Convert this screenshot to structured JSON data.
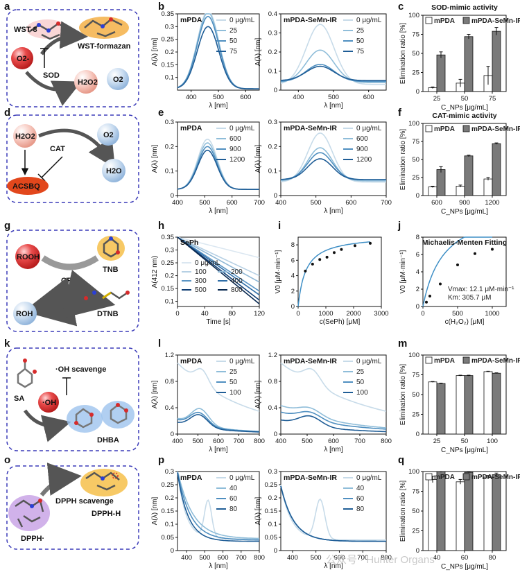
{
  "panel_labels": [
    "a",
    "b",
    "c",
    "d",
    "e",
    "f",
    "g",
    "h",
    "i",
    "j",
    "k",
    "l",
    "m",
    "o",
    "p",
    "q"
  ],
  "cartoons": {
    "a": {
      "labels": [
        "WST-8",
        "WST-formazan",
        "O2-",
        "SOD",
        "H2O2",
        "O2"
      ]
    },
    "d": {
      "labels": [
        "H2O2",
        "CAT",
        "O2",
        "H2O",
        "ACSBQ"
      ]
    },
    "g": {
      "labels": [
        "ROOH",
        "TNB",
        "GPx",
        "ROH",
        "DTNB"
      ]
    },
    "k": {
      "labels": [
        "·OH scavenge",
        "SA",
        "·OH",
        "DHBA"
      ]
    },
    "o": {
      "labels": [
        "DPPH scavenge",
        "DPPH-H",
        "DPPH·"
      ]
    }
  },
  "watermark": "公众号 · Hunter Organs",
  "colors": {
    "series": [
      "#c7dbe9",
      "#8fbdd9",
      "#4f8fc0",
      "#1f5d96"
    ],
    "series6": [
      "#dbe7f1",
      "#b6d0e4",
      "#8fb7d5",
      "#5b95c4",
      "#2f6ea8",
      "#0f3d73"
    ],
    "bar_light": "#ffffff",
    "bar_dark": "#7a7a7a",
    "fit": "#3f8fc6"
  },
  "chart_data": [
    {
      "id": "b1",
      "panel": "b",
      "type": "line",
      "title": "mPDA",
      "xlabel": "λ [nm]",
      "ylabel": "A(λ) [nm]",
      "xlim": [
        350,
        650
      ],
      "ylim": [
        0.05,
        0.35
      ],
      "xticks": [
        400,
        500,
        600
      ],
      "yticks": [
        0.1,
        0.15,
        0.2,
        0.25,
        0.3,
        0.35
      ],
      "legend_position": "top-right",
      "series": [
        {
          "name": "0 μg/mL",
          "peak": 0.308,
          "center": 462,
          "width": 56,
          "baseline": 0.055
        },
        {
          "name": "25",
          "peak": 0.3,
          "center": 462,
          "width": 56,
          "baseline": 0.055
        },
        {
          "name": "50",
          "peak": 0.285,
          "center": 462,
          "width": 56,
          "baseline": 0.055
        },
        {
          "name": "75",
          "peak": 0.245,
          "center": 462,
          "width": 56,
          "baseline": 0.055
        }
      ]
    },
    {
      "id": "b2",
      "panel": "b",
      "type": "line",
      "title": "mPDA-SeMn-IR",
      "xlabel": "λ [nm]",
      "ylabel": "A(λ) [nm]",
      "xlim": [
        350,
        650
      ],
      "ylim": [
        0.0,
        0.4
      ],
      "xticks": [
        400,
        500,
        600
      ],
      "yticks": [
        0.0,
        0.1,
        0.2,
        0.3,
        0.4
      ],
      "legend_position": "top-right",
      "series": [
        {
          "name": "0 μg/mL",
          "peak": 0.315,
          "center": 462,
          "width": 56,
          "baseline": 0.03
        },
        {
          "name": "25",
          "peak": 0.17,
          "center": 462,
          "width": 56,
          "baseline": 0.04
        },
        {
          "name": "50",
          "peak": 0.09,
          "center": 462,
          "width": 56,
          "baseline": 0.045
        },
        {
          "name": "75",
          "peak": 0.075,
          "center": 462,
          "width": 56,
          "baseline": 0.05
        }
      ]
    },
    {
      "id": "c",
      "panel": "c",
      "type": "bar",
      "title": "SOD-mimic activity",
      "xlabel": "C_NPs [μg/mL]",
      "ylabel": "Elimination ratio [%]",
      "categories": [
        "25",
        "50",
        "75"
      ],
      "ylim": [
        0,
        100
      ],
      "yticks": [
        0,
        25,
        50,
        75,
        100
      ],
      "legend_position": "top",
      "series": [
        {
          "name": "mPDA",
          "values": [
            5,
            11,
            21
          ],
          "errors": [
            1,
            5,
            12
          ]
        },
        {
          "name": "mPDA-SeMn-IR",
          "values": [
            48,
            72,
            79
          ],
          "errors": [
            4,
            3,
            5
          ]
        }
      ]
    },
    {
      "id": "e1",
      "panel": "e",
      "type": "line",
      "title": "mPDA",
      "xlabel": "λ [nm]",
      "ylabel": "A(λ) [nm]",
      "xlim": [
        400,
        700
      ],
      "ylim": [
        0.0,
        0.3
      ],
      "xticks": [
        400,
        500,
        600,
        700
      ],
      "yticks": [
        0.0,
        0.1,
        0.2,
        0.3
      ],
      "legend_position": "top-right",
      "series": [
        {
          "name": "0 μg/mL",
          "peak": 0.205,
          "center": 510,
          "width": 50,
          "baseline": 0.025
        },
        {
          "name": "600",
          "peak": 0.19,
          "center": 510,
          "width": 50,
          "baseline": 0.025
        },
        {
          "name": "900",
          "peak": 0.175,
          "center": 510,
          "width": 50,
          "baseline": 0.025
        },
        {
          "name": "1200",
          "peak": 0.16,
          "center": 510,
          "width": 50,
          "baseline": 0.025
        }
      ]
    },
    {
      "id": "e2",
      "panel": "e",
      "type": "line",
      "title": "mPDA-SeMn-IR",
      "xlabel": "λ [nm]",
      "ylabel": "A(λ) [nm]",
      "xlim": [
        400,
        700
      ],
      "ylim": [
        0.0,
        0.3
      ],
      "xticks": [
        400,
        500,
        600,
        700
      ],
      "yticks": [
        0.0,
        0.1,
        0.2,
        0.3
      ],
      "legend_position": "top-right",
      "series": [
        {
          "name": "0 μg/mL",
          "peak": 0.2,
          "center": 512,
          "width": 50,
          "baseline": 0.055
        },
        {
          "name": "600",
          "peak": 0.135,
          "center": 512,
          "width": 50,
          "baseline": 0.06
        },
        {
          "name": "900",
          "peak": 0.11,
          "center": 512,
          "width": 50,
          "baseline": 0.065
        },
        {
          "name": "1200",
          "peak": 0.085,
          "center": 512,
          "width": 50,
          "baseline": 0.065
        }
      ]
    },
    {
      "id": "f",
      "panel": "f",
      "type": "bar",
      "title": "CAT-mimic activity",
      "xlabel": "C_NPs [μg/mL]",
      "ylabel": "Elimination ratio [%]",
      "categories": [
        "600",
        "900",
        "1200"
      ],
      "ylim": [
        0,
        100
      ],
      "yticks": [
        0,
        25,
        50,
        75,
        100
      ],
      "legend_position": "top",
      "series": [
        {
          "name": "mPDA",
          "values": [
            12,
            13,
            23
          ],
          "errors": [
            1,
            1.5,
            2
          ]
        },
        {
          "name": "mPDA-SeMn-IR",
          "values": [
            36,
            55,
            72
          ],
          "errors": [
            4,
            1,
            1
          ]
        }
      ]
    },
    {
      "id": "h",
      "panel": "h",
      "type": "line",
      "title": "SePh",
      "xlabel": "Time [s]",
      "ylabel": "A(412 nm)",
      "xlim": [
        0,
        120
      ],
      "ylim": [
        0.08,
        0.35
      ],
      "xticks": [
        0,
        40,
        80,
        120
      ],
      "yticks": [
        0.1,
        0.15,
        0.2,
        0.25,
        0.3,
        0.35
      ],
      "legend_position": "bottom-left",
      "series": [
        {
          "name": "0 μg/mL",
          "x": [
            0,
            120
          ],
          "y": [
            0.35,
            0.27
          ]
        },
        {
          "name": "100",
          "x": [
            0,
            120
          ],
          "y": [
            0.35,
            0.2
          ]
        },
        {
          "name": "200",
          "x": [
            0,
            120
          ],
          "y": [
            0.35,
            0.175
          ]
        },
        {
          "name": "300",
          "x": [
            0,
            120
          ],
          "y": [
            0.35,
            0.14
          ]
        },
        {
          "name": "400",
          "x": [
            0,
            120
          ],
          "y": [
            0.35,
            0.125
          ]
        },
        {
          "name": "500",
          "x": [
            0,
            120
          ],
          "y": [
            0.35,
            0.105
          ]
        },
        {
          "name": "800",
          "x": [
            0,
            120
          ],
          "y": [
            0.35,
            0.09
          ]
        }
      ]
    },
    {
      "id": "i",
      "panel": "i",
      "type": "scatter",
      "title": "",
      "xlabel": "c(SePh) [μM]",
      "ylabel": "V0 [μM·min⁻¹]",
      "xlim": [
        0,
        3000
      ],
      "ylim": [
        0,
        9
      ],
      "xticks": [
        0,
        1000,
        2000,
        3000
      ],
      "yticks": [
        0,
        2,
        4,
        6,
        8
      ],
      "points": {
        "x": [
          260,
          520,
          780,
          1040,
          1300,
          1560,
          2050,
          2600
        ],
        "y": [
          4.6,
          5.5,
          6.1,
          6.4,
          7.0,
          7.4,
          7.9,
          8.2
        ]
      },
      "fit": {
        "vmax": 9.3,
        "km": 280
      }
    },
    {
      "id": "j",
      "panel": "j",
      "type": "scatter",
      "title": "Michaelis-Menten Fitting",
      "xlabel": "c(H₂O₂) [μM]",
      "ylabel": "V0 [μM·min⁻¹]",
      "xlim": [
        0,
        1200
      ],
      "ylim": [
        0,
        8
      ],
      "xticks": [
        0,
        500,
        1000
      ],
      "yticks": [
        0,
        2,
        4,
        6,
        8
      ],
      "points": {
        "x": [
          50,
          100,
          250,
          500,
          750,
          1000
        ],
        "y": [
          0.5,
          1.2,
          2.6,
          4.8,
          6.1,
          6.6
        ]
      },
      "fit": {
        "vmax": 12.1,
        "km": 305.7
      },
      "annotations": [
        "Vmax: 12.1 μM·min⁻¹",
        "Km: 305.7 μM"
      ]
    },
    {
      "id": "l1",
      "panel": "l",
      "type": "line",
      "title": "mPDA",
      "xlabel": "λ [nm]",
      "ylabel": "A(λ) [nm]",
      "xlim": [
        400,
        800
      ],
      "ylim": [
        0.0,
        1.2
      ],
      "xticks": [
        400,
        500,
        600,
        700,
        800
      ],
      "yticks": [
        0.0,
        0.4,
        0.8,
        1.2
      ],
      "legend_position": "top-right",
      "series": [
        {
          "name": "0 μg/mL",
          "base": 1.05,
          "decay": 0.003,
          "peak": 0.22,
          "center": 520,
          "width": 45,
          "floor": 0.03
        },
        {
          "name": "25",
          "base": 0.22,
          "decay": 0.005,
          "peak": 0.25,
          "center": 510,
          "width": 60,
          "floor": 0.01
        },
        {
          "name": "50",
          "base": 0.2,
          "decay": 0.005,
          "peak": 0.2,
          "center": 505,
          "width": 60,
          "floor": 0.01
        },
        {
          "name": "100",
          "base": 0.16,
          "decay": 0.005,
          "peak": 0.19,
          "center": 505,
          "width": 60,
          "floor": 0.01
        }
      ]
    },
    {
      "id": "l2",
      "panel": "l",
      "type": "line",
      "title": "mPDA-SeMn-IR",
      "xlabel": "λ [nm]",
      "ylabel": "A(λ) [nm]",
      "xlim": [
        400,
        800
      ],
      "ylim": [
        0.0,
        1.2
      ],
      "xticks": [
        400,
        500,
        600,
        700,
        800
      ],
      "yticks": [
        0.0,
        0.4,
        0.8,
        1.2
      ],
      "legend_position": "top-right",
      "series": [
        {
          "name": "0 μg/mL",
          "base": 1.05,
          "decay": 0.003,
          "peak": 0.22,
          "center": 520,
          "width": 45,
          "floor": 0.03
        },
        {
          "name": "25",
          "base": 0.42,
          "decay": 0.004,
          "peak": 0.12,
          "center": 510,
          "width": 60,
          "floor": 0.01
        },
        {
          "name": "50",
          "base": 0.32,
          "decay": 0.004,
          "peak": 0.12,
          "center": 510,
          "width": 60,
          "floor": 0.01
        },
        {
          "name": "100",
          "base": 0.2,
          "decay": 0.005,
          "peak": 0.15,
          "center": 510,
          "width": 60,
          "floor": 0.01
        }
      ]
    },
    {
      "id": "m",
      "panel": "m",
      "type": "bar",
      "title": "",
      "xlabel": "C_NPs [μg/mL]",
      "ylabel": "Elimination ratio [%]",
      "categories": [
        "25",
        "50",
        "100"
      ],
      "ylim": [
        0,
        100
      ],
      "yticks": [
        0,
        25,
        50,
        75,
        100
      ],
      "legend_position": "top",
      "series": [
        {
          "name": "mPDA",
          "values": [
            66,
            74,
            79
          ],
          "errors": [
            0.5,
            0.5,
            0.5
          ]
        },
        {
          "name": "mPDA-SeMn-IR",
          "values": [
            64,
            74,
            77
          ],
          "errors": [
            0.5,
            0.5,
            0.5
          ]
        }
      ]
    },
    {
      "id": "p1",
      "panel": "p",
      "type": "line",
      "title": "mPDA",
      "xlabel": "λ [nm]",
      "ylabel": "A(λ) [nm]",
      "xlim": [
        350,
        800
      ],
      "ylim": [
        0.0,
        0.3
      ],
      "xticks": [
        400,
        500,
        600,
        700,
        800
      ],
      "yticks": [
        0.0,
        0.05,
        0.1,
        0.15,
        0.2,
        0.25,
        0.3
      ],
      "legend_position": "top-right",
      "series": [
        {
          "name": "0 μg/mL",
          "base": 0.26,
          "decay": 0.022,
          "peak": 0.14,
          "center": 518,
          "width": 28,
          "floor": 0.045
        },
        {
          "name": "40",
          "base": 0.26,
          "decay": 0.012,
          "peak": 0.0,
          "center": 518,
          "width": 28,
          "floor": 0.045
        },
        {
          "name": "60",
          "base": 0.26,
          "decay": 0.014,
          "peak": 0.0,
          "center": 518,
          "width": 28,
          "floor": 0.04
        },
        {
          "name": "80",
          "base": 0.26,
          "decay": 0.017,
          "peak": 0.0,
          "center": 518,
          "width": 28,
          "floor": 0.035
        }
      ]
    },
    {
      "id": "p2",
      "panel": "p",
      "type": "line",
      "title": "mPDA-SeMn-IR",
      "xlabel": "λ [nm]",
      "ylabel": "A(λ) [nm]",
      "xlim": [
        350,
        800
      ],
      "ylim": [
        0.0,
        0.3
      ],
      "xticks": [
        400,
        500,
        600,
        700,
        800
      ],
      "yticks": [
        0.0,
        0.05,
        0.1,
        0.15,
        0.2,
        0.25,
        0.3
      ],
      "legend_position": "top-right",
      "series": [
        {
          "name": "0 μg/mL",
          "base": 0.21,
          "decay": 0.022,
          "peak": 0.15,
          "center": 518,
          "width": 28,
          "floor": 0.04
        },
        {
          "name": "40",
          "base": 0.21,
          "decay": 0.018,
          "peak": 0.0,
          "center": 518,
          "width": 28,
          "floor": 0.035
        },
        {
          "name": "60",
          "base": 0.21,
          "decay": 0.018,
          "peak": 0.0,
          "center": 518,
          "width": 28,
          "floor": 0.035
        },
        {
          "name": "80",
          "base": 0.21,
          "decay": 0.018,
          "peak": 0.0,
          "center": 518,
          "width": 28,
          "floor": 0.035
        }
      ]
    },
    {
      "id": "q",
      "panel": "q",
      "type": "bar",
      "title": "",
      "xlabel": "C_NPs [μg/mL]",
      "ylabel": "Elimination ratio [%]",
      "categories": [
        "40",
        "60",
        "80"
      ],
      "ylim": [
        0,
        100
      ],
      "yticks": [
        0,
        25,
        50,
        75,
        100
      ],
      "legend_position": "top",
      "series": [
        {
          "name": "mPDA",
          "values": [
            90,
            87,
            93
          ],
          "errors": [
            4,
            3,
            2
          ]
        },
        {
          "name": "mPDA-SeMn-IR",
          "values": [
            100,
            99,
            96
          ],
          "errors": [
            1,
            0.5,
            2
          ]
        }
      ]
    }
  ]
}
